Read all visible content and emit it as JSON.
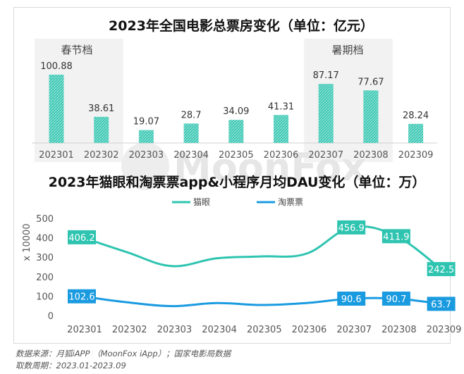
{
  "colors": {
    "bar": "#3cc8b4",
    "maoyan": "#2ec4b0",
    "taopiaopiao": "#1a9be0",
    "highlight": "#f2f2f2",
    "watermark": "#e2e2e2"
  },
  "watermark": "MoonFox",
  "chart_data": [
    {
      "type": "bar",
      "title": "2023年全国电影总票房变化（单位：亿元）",
      "categories": [
        "202301",
        "202302",
        "202303",
        "202304",
        "202305",
        "202306",
        "202307",
        "202308",
        "202309"
      ],
      "values": [
        100.88,
        38.61,
        19.07,
        28.7,
        34.09,
        41.31,
        87.17,
        77.67,
        28.24
      ],
      "value_labels": [
        "100.88",
        "38.61",
        "19.07",
        "28.7",
        "34.09",
        "41.31",
        "87.17",
        "77.67",
        "28.24"
      ],
      "ylim": [
        0,
        110
      ],
      "annotations": [
        {
          "text": "春节档",
          "from": 0,
          "to": 1
        },
        {
          "text": "暑期档",
          "from": 6,
          "to": 7
        }
      ]
    },
    {
      "type": "line",
      "title": "2023年猫眼和淘票票app&小程序月均DAU变化（单位：万）",
      "ylabel": "x 10000",
      "ylim": [
        0,
        500
      ],
      "yticks": [
        0,
        100,
        200,
        300,
        400,
        500
      ],
      "ytick_labels": [
        "0",
        "100",
        "200",
        "300",
        "400",
        "500"
      ],
      "categories": [
        "202301",
        "202302",
        "202303",
        "202304",
        "202305",
        "202306",
        "202307",
        "202308",
        "202309"
      ],
      "series": [
        {
          "name": "猫眼",
          "values": [
            406.2,
            330,
            258,
            298,
            308,
            322,
            456.9,
            411.9,
            242.5
          ],
          "labels": [
            {
              "index": 0,
              "text": "406.2"
            },
            {
              "index": 6,
              "text": "456.9"
            },
            {
              "index": 7,
              "text": "411.9"
            },
            {
              "index": 8,
              "text": "242.5"
            }
          ]
        },
        {
          "name": "淘票票",
          "values": [
            102.6,
            72,
            52,
            68,
            58,
            68,
            90.6,
            90.7,
            63.7
          ],
          "labels": [
            {
              "index": 0,
              "text": "102.6"
            },
            {
              "index": 6,
              "text": "90.6"
            },
            {
              "index": 7,
              "text": "90.7"
            },
            {
              "index": 8,
              "text": "63.7"
            }
          ]
        }
      ],
      "legend_position": "top-center"
    }
  ],
  "footer": {
    "source": "数据来源：月狐iAPP （MoonFox iApp）；国家电影局数据",
    "period": "取数周期：2023.01-2023.09"
  }
}
